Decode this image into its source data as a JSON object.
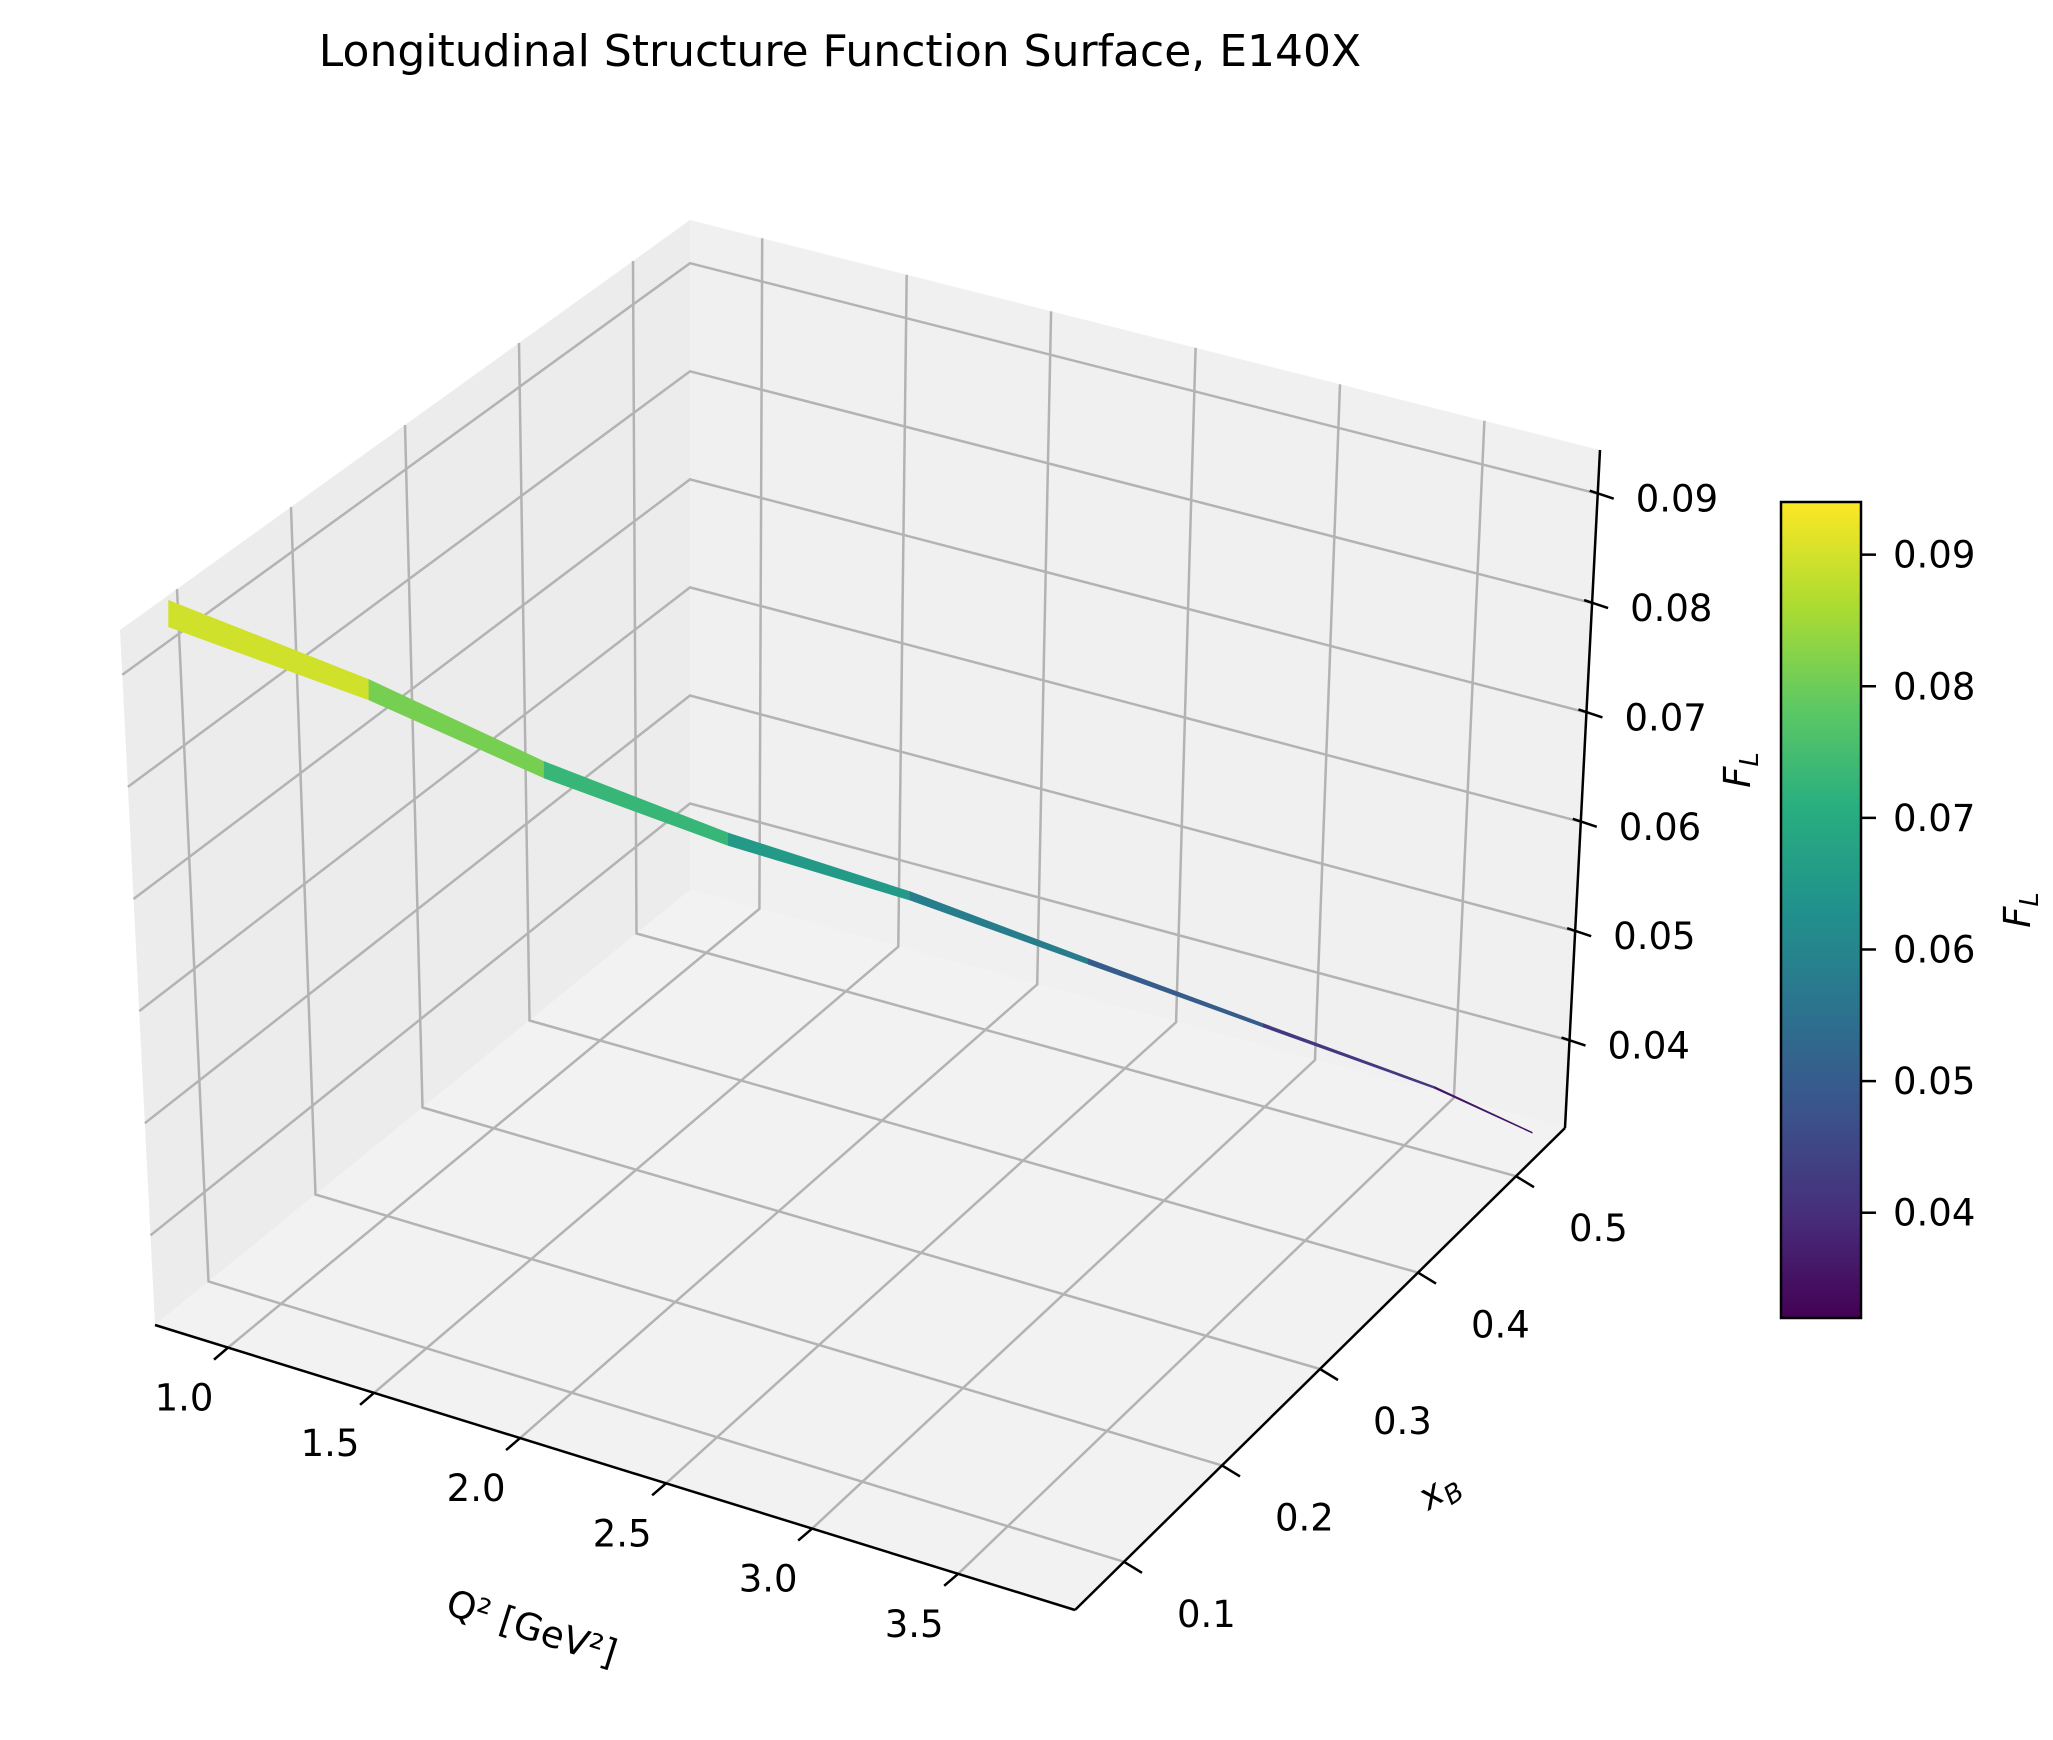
{
  "chart_data": {
    "type": "surface3d",
    "title": "Longitudinal Structure Function Surface, E140X",
    "xlabel": "Q² [GeV²]",
    "ylabel": "x_B",
    "zlabel": "F_L",
    "colorbar_label": "F_L",
    "colormap": "viridis",
    "x_ticks": [
      "1.0",
      "1.5",
      "2.0",
      "2.5",
      "3.0",
      "3.5"
    ],
    "y_ticks": [
      "0.1",
      "0.2",
      "0.3",
      "0.4",
      "0.5"
    ],
    "z_ticks": [
      "0.04",
      "0.05",
      "0.06",
      "0.07",
      "0.08",
      "0.09"
    ],
    "colorbar_ticks": [
      "0.04",
      "0.05",
      "0.06",
      "0.07",
      "0.08",
      "0.09"
    ],
    "xlim": [
      0.75,
      3.9
    ],
    "ylim": [
      0.05,
      0.55
    ],
    "zlim": [
      0.032,
      0.094
    ],
    "grid": true,
    "surface_profile": {
      "description_points": [
        {
          "Q2": 0.8,
          "xB": 0.08,
          "FL": 0.094
        },
        {
          "Q2": 1.2,
          "xB": 0.15,
          "FL": 0.085
        },
        {
          "Q2": 1.6,
          "xB": 0.2,
          "FL": 0.077
        },
        {
          "Q2": 2.0,
          "xB": 0.26,
          "FL": 0.069
        },
        {
          "Q2": 2.4,
          "xB": 0.32,
          "FL": 0.062
        },
        {
          "Q2": 2.8,
          "xB": 0.38,
          "FL": 0.054
        },
        {
          "Q2": 3.2,
          "xB": 0.44,
          "FL": 0.046
        },
        {
          "Q2": 3.6,
          "xB": 0.5,
          "FL": 0.038
        },
        {
          "Q2": 3.85,
          "xB": 0.53,
          "FL": 0.033
        }
      ]
    }
  }
}
